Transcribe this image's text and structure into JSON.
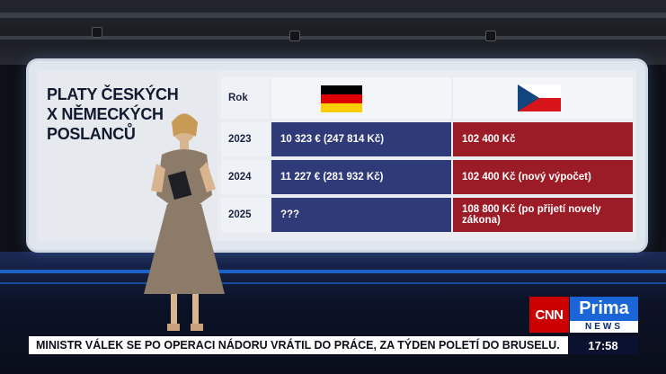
{
  "wall": {
    "title": "PLATY ČESKÝCH\nX NĚMECKÝCH\nPOSLANCŮ",
    "header_year": "Rok",
    "flags": {
      "germany": "germany-flag-icon",
      "czech": "czech-flag-icon"
    },
    "rows": [
      {
        "year": "2023",
        "germany": "10 323 € (247 814 Kč)",
        "czech": "102 400 Kč"
      },
      {
        "year": "2024",
        "germany": "11 227 € (281 932 Kč)",
        "czech": "102 400 Kč (nový výpočet)"
      },
      {
        "year": "2025",
        "germany": "???",
        "czech": "108 800 Kč (po přijetí novely zákona)"
      }
    ],
    "colors": {
      "germany_cell": "#2f3a78",
      "czech_cell": "#9b1c27"
    }
  },
  "logo": {
    "cnn": "CNN",
    "prima": "Prima",
    "news": "NEWS"
  },
  "ticker": {
    "headline": "MINISTR VÁLEK SE PO OPERACI NÁDORU VRÁTIL DO PRÁCE, ZA TÝDEN POLETÍ DO BRUSELU.",
    "time": "17:58"
  }
}
